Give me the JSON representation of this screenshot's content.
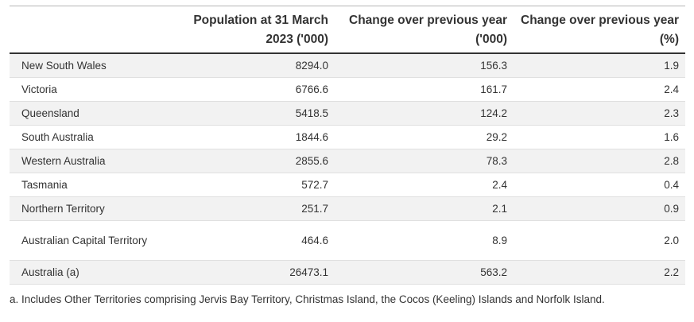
{
  "table": {
    "headers": [
      "",
      "Population at 31 March 2023 ('000)",
      "Change over previous year ('000)",
      "Change over previous year (%)"
    ],
    "rows": [
      [
        "New South Wales",
        "8294.0",
        "156.3",
        "1.9"
      ],
      [
        "Victoria",
        "6766.6",
        "161.7",
        "2.4"
      ],
      [
        "Queensland",
        "5418.5",
        "124.2",
        "2.3"
      ],
      [
        "South Australia",
        "1844.6",
        "29.2",
        "1.6"
      ],
      [
        "Western Australia",
        "2855.6",
        "78.3",
        "2.8"
      ],
      [
        "Tasmania",
        "572.7",
        "2.4",
        "0.4"
      ],
      [
        "Northern Territory",
        "251.7",
        "2.1",
        "0.9"
      ],
      [
        "Australian Capital Territory",
        "464.6",
        "8.9",
        "2.0"
      ],
      [
        "Australia (a)",
        "26473.1",
        "563.2",
        "2.2"
      ]
    ]
  },
  "footnote": "a. Includes Other Territories comprising Jervis Bay Territory, Christmas Island, the Cocos (Keeling) Islands and Norfolk Island."
}
